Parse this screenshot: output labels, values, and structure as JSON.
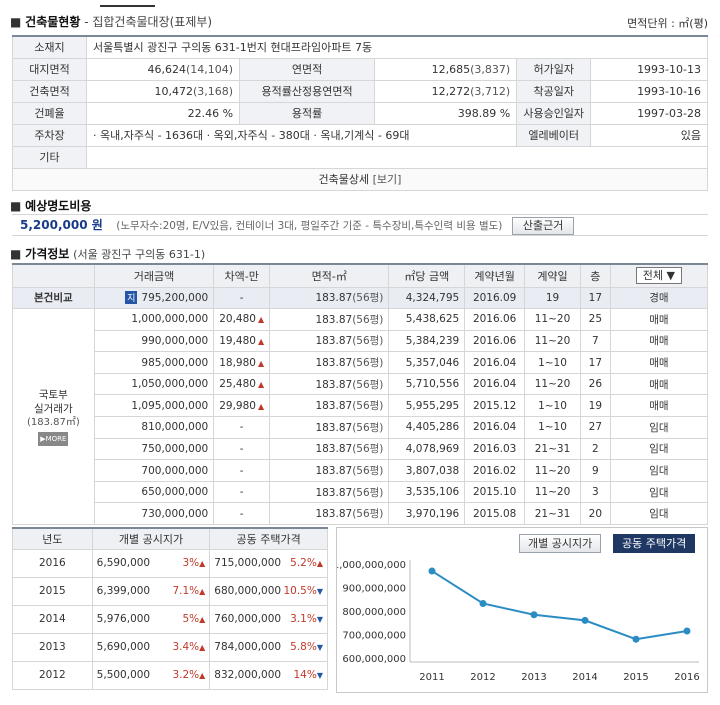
{
  "building": {
    "title": "건축물현황",
    "subtitle": "- 집합건축물대장(표제부)",
    "unit": "면적단위 : ㎡(평)",
    "rows": {
      "addr_label": "소재지",
      "addr": "서울특별시 광진구 구의동 631-1번지 현대프라임아파트 7동",
      "site_label": "대지면적",
      "site_val": "46,624",
      "site_py": "(14,104)",
      "floor_label": "연면적",
      "floor_val": "12,685",
      "floor_py": "(3,837)",
      "permit_label": "허가일자",
      "permit_val": "1993-10-13",
      "bldg_label": "건축면적",
      "bldg_val": "10,472",
      "bldg_py": "(3,168)",
      "ratio_floor_label": "용적률산정용연면적",
      "ratio_floor_val": "12,272",
      "ratio_floor_py": "(3,712)",
      "start_label": "착공일자",
      "start_val": "1993-10-16",
      "bcr_label": "건폐율",
      "bcr_val": "22.46 %",
      "far_label": "용적률",
      "far_val": "398.89 %",
      "approval_label": "사용승인일자",
      "approval_val": "1997-03-28",
      "parking_label": "주차장",
      "parking_val": "· 옥내,자주식 - 1636대 · 옥외,자주식 - 380대 · 옥내,기계식 - 69대",
      "elevator_label": "엘레베이터",
      "elevator_val": "있음",
      "etc_label": "기타",
      "detail_label": "건축물상세",
      "detail_link": "[보기]"
    }
  },
  "cost": {
    "title": "예상명도비용",
    "amount": "5,200,000 원",
    "note": "(노무자수:20명, E/V있음, 컨테이너 3대, 평일주간 기준 - 특수장비,특수인력 비용 별도)",
    "button": "산출근거"
  },
  "price": {
    "title": "가격정보",
    "subtitle": "(서울 광진구 구의동 631-1)",
    "headers": [
      "거래금액",
      "차액-만",
      "면적-㎡",
      "㎡당 금액",
      "계약년월",
      "계약일",
      "층"
    ],
    "type_select": "전체 ▼",
    "own_label": "본건비교",
    "own_badge": "지",
    "group_label_1": "국토부",
    "group_label_2": "실거래가",
    "group_label_3": "(183.87㎡)",
    "more": "▶MORE",
    "own": {
      "amount": "795,200,000",
      "diff": "-",
      "area": "183.87",
      "py": "(56평)",
      "per": "4,324,795",
      "ym": "2016.09",
      "day": "19",
      "floor": "17",
      "type": "경매"
    },
    "rows": [
      {
        "amount": "1,000,000,000",
        "diff": "20,480",
        "up": "▲",
        "area": "183.87",
        "py": "(56평)",
        "per": "5,438,625",
        "ym": "2016.06",
        "day": "11~20",
        "floor": "25",
        "type": "매매"
      },
      {
        "amount": "990,000,000",
        "diff": "19,480",
        "up": "▲",
        "area": "183.87",
        "py": "(56평)",
        "per": "5,384,239",
        "ym": "2016.06",
        "day": "11~20",
        "floor": "7",
        "type": "매매"
      },
      {
        "amount": "985,000,000",
        "diff": "18,980",
        "up": "▲",
        "area": "183.87",
        "py": "(56평)",
        "per": "5,357,046",
        "ym": "2016.04",
        "day": "1~10",
        "floor": "17",
        "type": "매매"
      },
      {
        "amount": "1,050,000,000",
        "diff": "25,480",
        "up": "▲",
        "area": "183.87",
        "py": "(56평)",
        "per": "5,710,556",
        "ym": "2016.04",
        "day": "11~20",
        "floor": "26",
        "type": "매매"
      },
      {
        "amount": "1,095,000,000",
        "diff": "29,980",
        "up": "▲",
        "area": "183.87",
        "py": "(56평)",
        "per": "5,955,295",
        "ym": "2015.12",
        "day": "1~10",
        "floor": "19",
        "type": "매매"
      },
      {
        "amount": "810,000,000",
        "diff": "-",
        "up": "",
        "area": "183.87",
        "py": "(56평)",
        "per": "4,405,286",
        "ym": "2016.04",
        "day": "1~10",
        "floor": "27",
        "type": "임대"
      },
      {
        "amount": "750,000,000",
        "diff": "-",
        "up": "",
        "area": "183.87",
        "py": "(56평)",
        "per": "4,078,969",
        "ym": "2016.03",
        "day": "21~31",
        "floor": "2",
        "type": "임대"
      },
      {
        "amount": "700,000,000",
        "diff": "-",
        "up": "",
        "area": "183.87",
        "py": "(56평)",
        "per": "3,807,038",
        "ym": "2016.02",
        "day": "11~20",
        "floor": "9",
        "type": "임대"
      },
      {
        "amount": "650,000,000",
        "diff": "-",
        "up": "",
        "area": "183.87",
        "py": "(56평)",
        "per": "3,535,106",
        "ym": "2015.10",
        "day": "11~20",
        "floor": "3",
        "type": "임대"
      },
      {
        "amount": "730,000,000",
        "diff": "-",
        "up": "",
        "area": "183.87",
        "py": "(56평)",
        "per": "3,970,196",
        "ym": "2015.08",
        "day": "21~31",
        "floor": "20",
        "type": "임대"
      }
    ]
  },
  "yearly": {
    "headers": [
      "년도",
      "개별 공시지가",
      "공동 주택가격"
    ],
    "rows": [
      {
        "year": "2016",
        "land": "6,590,000",
        "land_pct": "3%",
        "land_dir": "▲",
        "house": "715,000,000",
        "house_pct": "5.2%",
        "house_dir": "▲"
      },
      {
        "year": "2015",
        "land": "6,399,000",
        "land_pct": "7.1%",
        "land_dir": "▲",
        "house": "680,000,000",
        "house_pct": "10.5%",
        "house_dir": "▼"
      },
      {
        "year": "2014",
        "land": "5,976,000",
        "land_pct": "5%",
        "land_dir": "▲",
        "house": "760,000,000",
        "house_pct": "3.1%",
        "house_dir": "▼"
      },
      {
        "year": "2013",
        "land": "5,690,000",
        "land_pct": "3.4%",
        "land_dir": "▲",
        "house": "784,000,000",
        "house_pct": "5.8%",
        "house_dir": "▼"
      },
      {
        "year": "2012",
        "land": "5,500,000",
        "land_pct": "3.2%",
        "land_dir": "▲",
        "house": "832,000,000",
        "house_pct": "14%",
        "house_dir": "▼"
      }
    ]
  },
  "chart_tabs": {
    "land": "개별 공시지가",
    "house": "공동 주택가격"
  },
  "colors": {
    "accent": "#1f3763",
    "line": "#2b8cc4",
    "up": "#c0392b",
    "down": "#2456a6"
  },
  "chart_data": {
    "type": "line",
    "x": [
      "2011",
      "2012",
      "2013",
      "2014",
      "2015",
      "2016"
    ],
    "series": [
      {
        "values": [
          970000000,
          832000000,
          784000000,
          760000000,
          680000000,
          715000000
        ]
      }
    ],
    "yticks": [
      "1,000,000,000",
      "900,000,000",
      "800,000,000",
      "700,000,000",
      "600,000,000"
    ],
    "ylim": [
      600000000,
      1000000000
    ],
    "grid": false,
    "legend": "none"
  }
}
